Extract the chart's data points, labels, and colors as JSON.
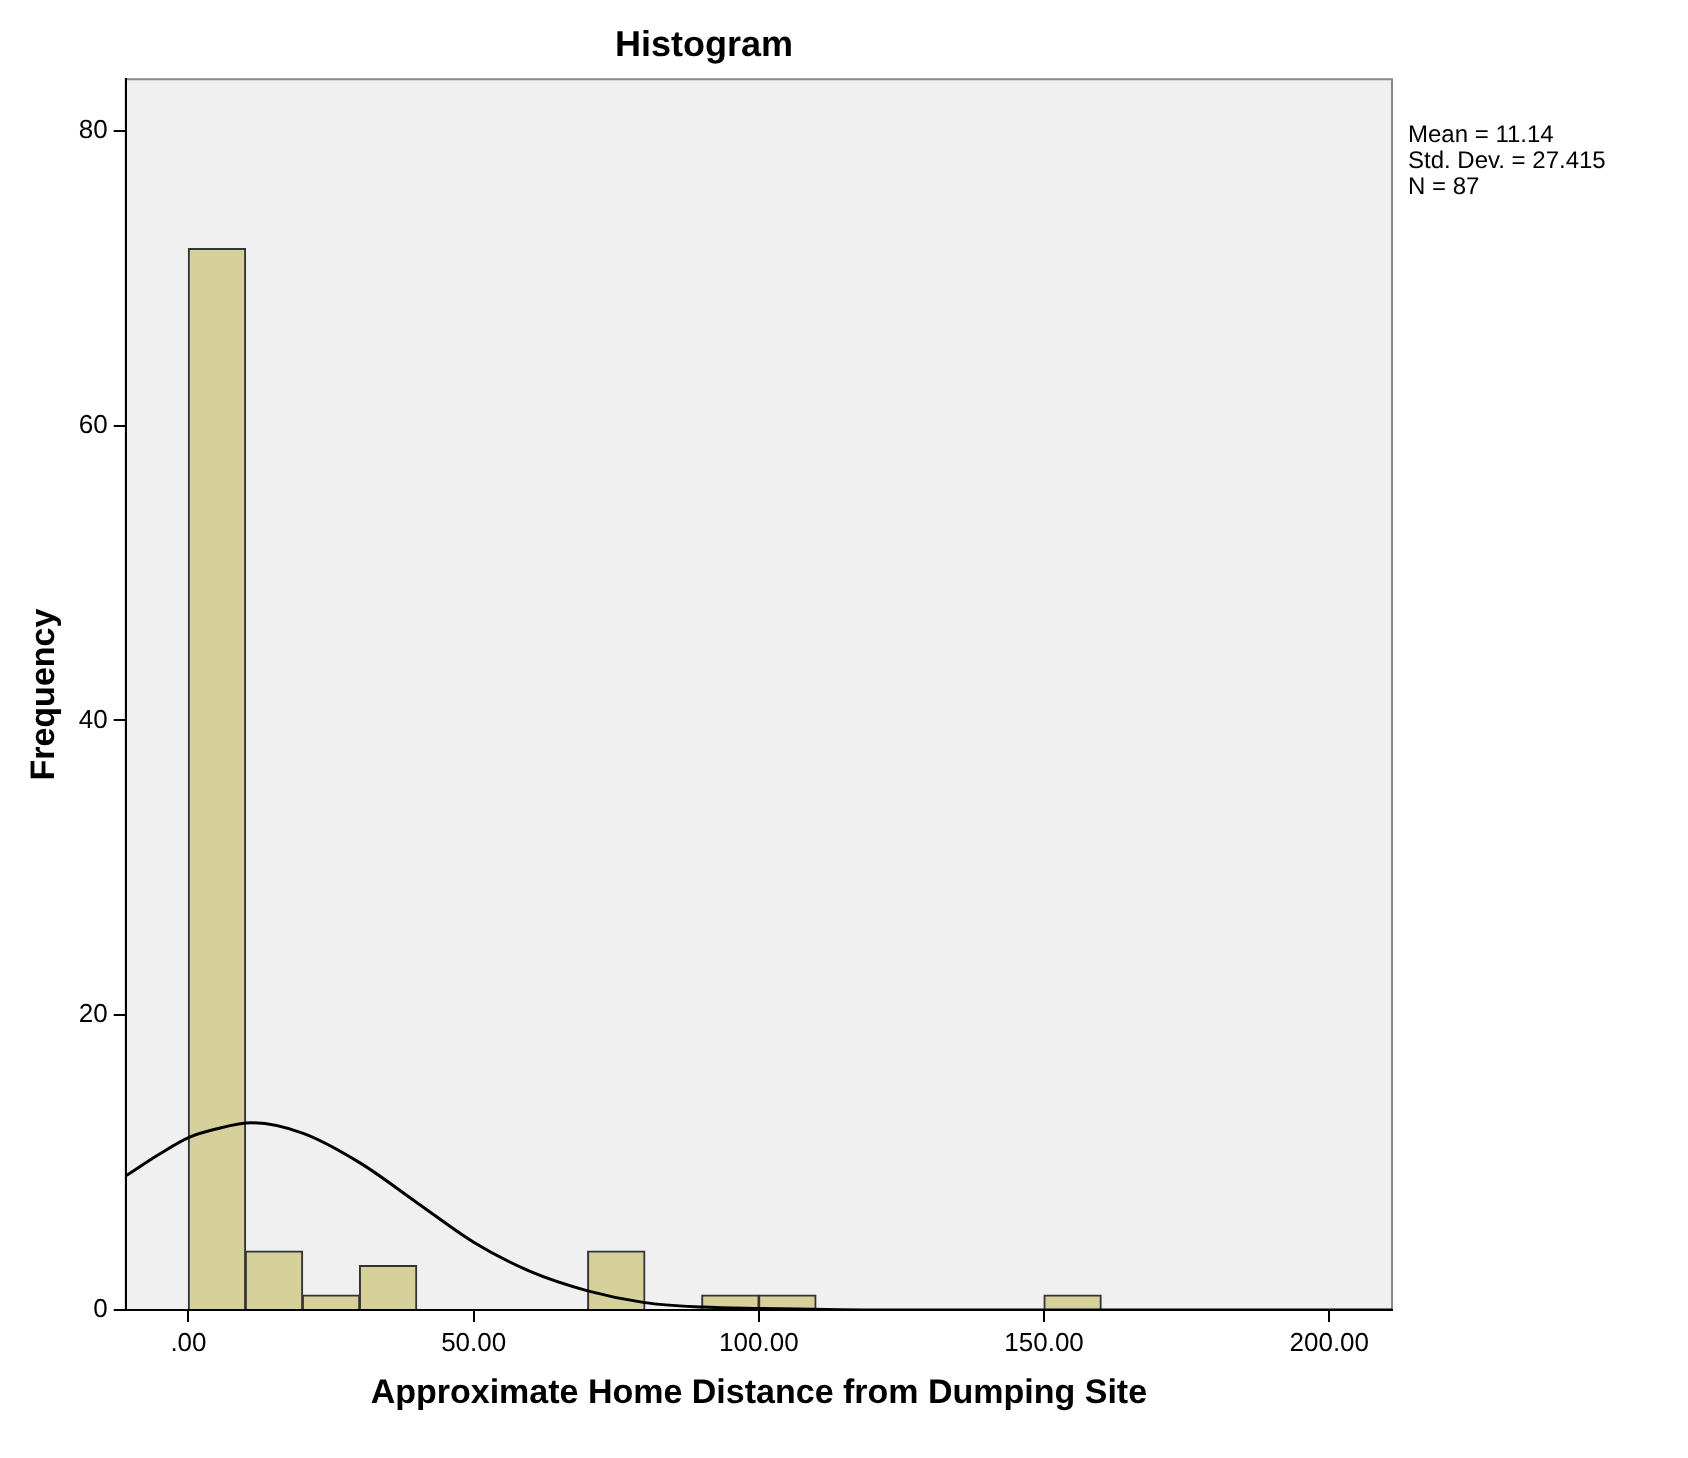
{
  "chart_data": {
    "type": "histogram",
    "title": "Histogram",
    "xlabel": "Approximate Home Distance from Dumping Site",
    "ylabel": "Frequency",
    "bins": [
      0,
      10,
      20,
      30,
      40,
      50,
      60,
      70,
      80,
      90,
      100,
      110,
      120,
      130,
      140,
      150,
      160
    ],
    "values": [
      72,
      4,
      1,
      3,
      0,
      0,
      0,
      4,
      0,
      1,
      1,
      0,
      0,
      0,
      0,
      1
    ],
    "color": "#d6d09a",
    "series": [
      {
        "type": "line",
        "color": "#000000",
        "x": [
          -11,
          -5,
          0,
          5,
          11.14,
          20,
          30,
          40,
          50,
          60,
          70,
          80,
          90,
          100,
          120,
          150,
          211
        ],
        "values": [
          9.1,
          10.6,
          11.7,
          12.3,
          12.7,
          12.0,
          10.0,
          7.3,
          4.6,
          2.6,
          1.3,
          0.5,
          0.2,
          0.1,
          0,
          0,
          0
        ]
      }
    ],
    "xlim": [
      -11,
      211
    ],
    "xticks": [
      {
        "value": 0,
        "label": ".00"
      },
      {
        "value": 50,
        "label": "50.00"
      },
      {
        "value": 100,
        "label": "100.00"
      },
      {
        "value": 150,
        "label": "150.00"
      },
      {
        "value": 200,
        "label": "200.00"
      }
    ],
    "ylim": [
      0,
      83.5
    ],
    "yticks": [
      0,
      20,
      40,
      60,
      80
    ],
    "grid": false,
    "legend": false,
    "marker": "none",
    "annotations": [
      "Mean = 11.14",
      "Std. Dev. = 27.415",
      "N = 87"
    ]
  }
}
